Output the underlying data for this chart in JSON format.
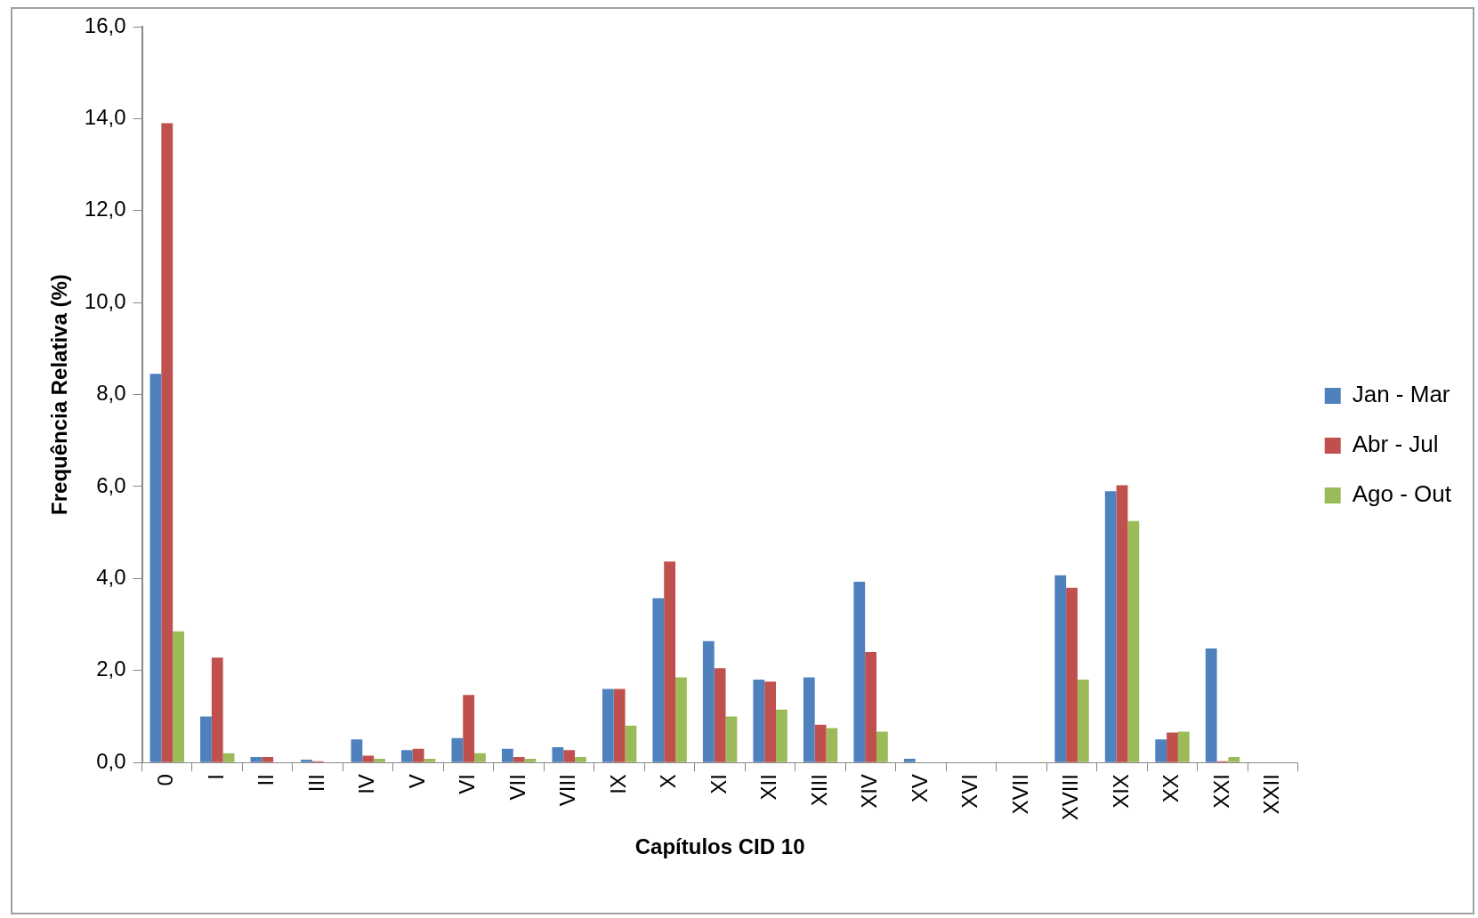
{
  "chart_data": {
    "type": "bar",
    "xlabel": "Capítulos CID 10",
    "ylabel": "Frequência Relativa (%)",
    "categories": [
      "0",
      "I",
      "II",
      "III",
      "IV",
      "V",
      "VI",
      "VII",
      "VIII",
      "IX",
      "X",
      "XI",
      "XII",
      "XIII",
      "XIV",
      "XV",
      "XVI",
      "XVII",
      "XVIII",
      "XIX",
      "XX",
      "XXI",
      "XXII"
    ],
    "series": [
      {
        "name": "Jan - Mar",
        "color": "#4f81bd",
        "values": [
          8.45,
          1.0,
          0.12,
          0.06,
          0.5,
          0.27,
          0.53,
          0.3,
          0.33,
          1.6,
          3.57,
          2.64,
          1.8,
          1.85,
          3.93,
          0.08,
          0,
          0,
          4.07,
          5.9,
          0.5,
          2.48,
          0
        ]
      },
      {
        "name": "Abr - Jul",
        "color": "#c0504d",
        "values": [
          13.9,
          2.28,
          0.12,
          0.03,
          0.15,
          0.3,
          1.47,
          0.12,
          0.27,
          1.6,
          4.37,
          2.05,
          1.76,
          0.82,
          2.4,
          0,
          0,
          0,
          3.8,
          6.03,
          0.65,
          0.03,
          0
        ]
      },
      {
        "name": "Ago - Out",
        "color": "#9bbb59",
        "values": [
          2.85,
          0.2,
          0,
          0,
          0.08,
          0.08,
          0.2,
          0.08,
          0.12,
          0.8,
          1.85,
          1.0,
          1.15,
          0.75,
          0.67,
          0,
          0,
          0,
          1.8,
          5.25,
          0.67,
          0.12,
          0
        ]
      }
    ],
    "ylim": [
      0,
      16
    ],
    "yticks": [
      {
        "value": 0,
        "label": "0,0"
      },
      {
        "value": 2,
        "label": "2,0"
      },
      {
        "value": 4,
        "label": "4,0"
      },
      {
        "value": 6,
        "label": "6,0"
      },
      {
        "value": 8,
        "label": "8,0"
      },
      {
        "value": 10,
        "label": "10,0"
      },
      {
        "value": 12,
        "label": "12,0"
      },
      {
        "value": 14,
        "label": "14,0"
      },
      {
        "value": 16,
        "label": "16,0"
      }
    ],
    "grid": false,
    "legend": "right"
  }
}
